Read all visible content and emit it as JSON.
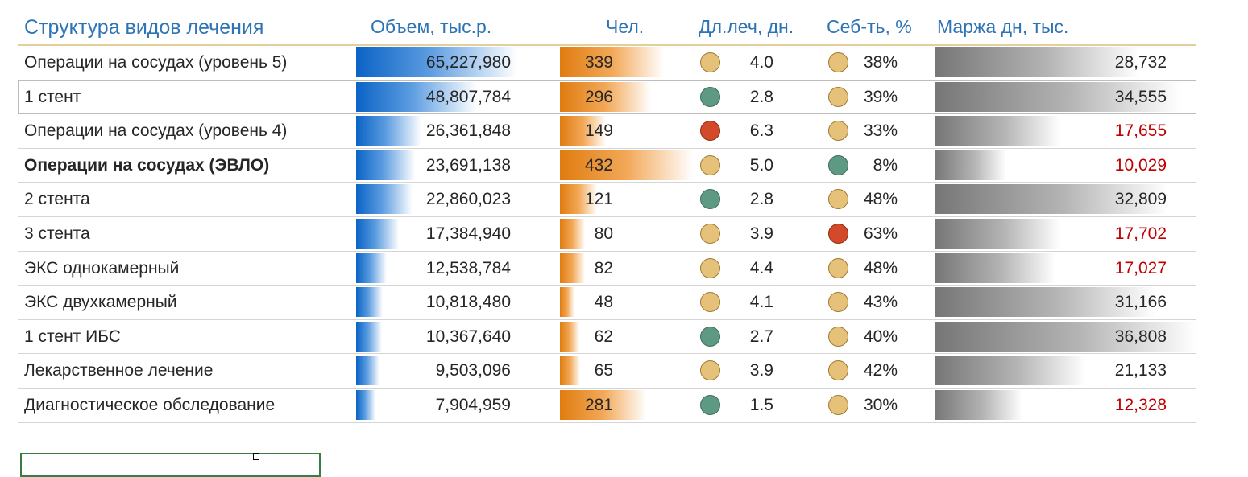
{
  "headers": {
    "title": "Структура видов лечения",
    "volume": "Объем, тыс.р.",
    "people": "Чел.",
    "length": "Дл.леч, дн.",
    "cost": "Себ-ть, %",
    "margin": "Маржа дн, тыс."
  },
  "colors": {
    "header_text": "#2e74b5",
    "volume_bar": "#0b63c5",
    "people_bar": "#e07c10",
    "margin_bar": "#767676",
    "negative_text": "#c00000",
    "dot_yellow": "#e6c17a",
    "dot_green": "#5e9a83",
    "dot_red": "#d24a28"
  },
  "scales": {
    "volume_max": 65227980,
    "people_max": 432,
    "margin_max": 36808
  },
  "rows": [
    {
      "name": "Операции на сосудах (уровень 5)",
      "bold": false,
      "volume": 65227980,
      "volume_text": "65,227,980",
      "people": 339,
      "people_text": "339",
      "length_text": "4.0",
      "length_status": "yellow",
      "cost": 38,
      "cost_text": "38%",
      "cost_status": "yellow",
      "margin": 28732,
      "margin_text": "28,732",
      "margin_red": false,
      "selected": false
    },
    {
      "name": "1 стент",
      "bold": false,
      "volume": 48807784,
      "volume_text": "48,807,784",
      "people": 296,
      "people_text": "296",
      "length_text": "2.8",
      "length_status": "green",
      "cost": 39,
      "cost_text": "39%",
      "cost_status": "yellow",
      "margin": 34555,
      "margin_text": "34,555",
      "margin_red": false,
      "selected": true
    },
    {
      "name": "Операции на сосудах (уровень 4)",
      "bold": false,
      "volume": 26361848,
      "volume_text": "26,361,848",
      "people": 149,
      "people_text": "149",
      "length_text": "6.3",
      "length_status": "red",
      "cost": 33,
      "cost_text": "33%",
      "cost_status": "yellow",
      "margin": 17655,
      "margin_text": "17,655",
      "margin_red": true,
      "selected": false
    },
    {
      "name": "Операции на сосудах (ЭВЛО)",
      "bold": true,
      "volume": 23691138,
      "volume_text": "23,691,138",
      "people": 432,
      "people_text": "432",
      "length_text": "5.0",
      "length_status": "yellow",
      "cost": 8,
      "cost_text": "8%",
      "cost_status": "green",
      "margin": 10029,
      "margin_text": "10,029",
      "margin_red": true,
      "selected": false
    },
    {
      "name": "2 стента",
      "bold": false,
      "volume": 22860023,
      "volume_text": "22,860,023",
      "people": 121,
      "people_text": "121",
      "length_text": "2.8",
      "length_status": "green",
      "cost": 48,
      "cost_text": "48%",
      "cost_status": "yellow",
      "margin": 32809,
      "margin_text": "32,809",
      "margin_red": false,
      "selected": false
    },
    {
      "name": "3 стента",
      "bold": false,
      "volume": 17384940,
      "volume_text": "17,384,940",
      "people": 80,
      "people_text": "80",
      "length_text": "3.9",
      "length_status": "yellow",
      "cost": 63,
      "cost_text": "63%",
      "cost_status": "red",
      "margin": 17702,
      "margin_text": "17,702",
      "margin_red": true,
      "selected": false
    },
    {
      "name": "ЭКС однокамерный",
      "bold": false,
      "volume": 12538784,
      "volume_text": "12,538,784",
      "people": 82,
      "people_text": "82",
      "length_text": "4.4",
      "length_status": "yellow",
      "cost": 48,
      "cost_text": "48%",
      "cost_status": "yellow",
      "margin": 17027,
      "margin_text": "17,027",
      "margin_red": true,
      "selected": false
    },
    {
      "name": "ЭКС двухкамерный",
      "bold": false,
      "volume": 10818480,
      "volume_text": "10,818,480",
      "people": 48,
      "people_text": "48",
      "length_text": "4.1",
      "length_status": "yellow",
      "cost": 43,
      "cost_text": "43%",
      "cost_status": "yellow",
      "margin": 31166,
      "margin_text": "31,166",
      "margin_red": false,
      "selected": false
    },
    {
      "name": "1 стент ИБС",
      "bold": false,
      "volume": 10367640,
      "volume_text": "10,367,640",
      "people": 62,
      "people_text": "62",
      "length_text": "2.7",
      "length_status": "green",
      "cost": 40,
      "cost_text": "40%",
      "cost_status": "yellow",
      "margin": 36808,
      "margin_text": "36,808",
      "margin_red": false,
      "selected": false
    },
    {
      "name": "Лекарственное лечение",
      "bold": false,
      "volume": 9503096,
      "volume_text": "9,503,096",
      "people": 65,
      "people_text": "65",
      "length_text": "3.9",
      "length_status": "yellow",
      "cost": 42,
      "cost_text": "42%",
      "cost_status": "yellow",
      "margin": 21133,
      "margin_text": "21,133",
      "margin_red": false,
      "selected": false
    },
    {
      "name": "Диагностическое обследование",
      "bold": false,
      "volume": 7904959,
      "volume_text": "7,904,959",
      "people": 281,
      "people_text": "281",
      "length_text": "1.5",
      "length_status": "green",
      "cost": 30,
      "cost_text": "30%",
      "cost_status": "yellow",
      "margin": 12328,
      "margin_text": "12,328",
      "margin_red": true,
      "selected": false
    }
  ]
}
